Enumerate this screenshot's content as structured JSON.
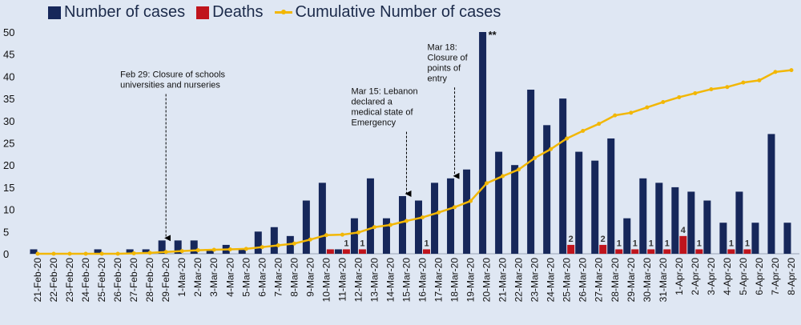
{
  "chart_data": {
    "type": "bar",
    "ylim": [
      0,
      50
    ],
    "yticks": [
      0,
      5,
      10,
      15,
      20,
      25,
      30,
      35,
      40,
      45,
      50
    ],
    "categories": [
      "21-Feb-20",
      "22-Feb-20",
      "23-Feb-20",
      "24-Feb-20",
      "25-Feb-20",
      "26-Feb-20",
      "27-Feb-20",
      "28-Feb-20",
      "29-Feb-20",
      "1-Mar-20",
      "2-Mar-20",
      "3-Mar-20",
      "4-Mar-20",
      "5-Mar-20",
      "6-Mar-20",
      "7-Mar-20",
      "8-Mar-20",
      "9-Mar-20",
      "10-Mar-20",
      "11-Mar-20",
      "12-Mar-20",
      "13-Mar-20",
      "14-Mar-20",
      "15-Mar-20",
      "16-Mar-20",
      "17-Mar-20",
      "18-Mar-20",
      "19-Mar-20",
      "20-Mar-20",
      "21-Mar-20",
      "22-Mar-20",
      "23-Mar-20",
      "24-Mar-20",
      "25-Mar-20",
      "26-Mar-20",
      "27-Mar-20",
      "28-Mar-20",
      "29-Mar-20",
      "30-Mar-20",
      "31-Mar-20",
      "1-Apr-20",
      "2-Apr-20",
      "3-Apr-20",
      "4-Apr-20",
      "5-Apr-20",
      "6-Apr-20",
      "7-Apr-20",
      "8-Apr-20"
    ],
    "series": [
      {
        "name": "Number of cases",
        "type": "bar",
        "color": "#16275a",
        "values": [
          1,
          0,
          0,
          0,
          1,
          0,
          1,
          1,
          3,
          3,
          3,
          1,
          2,
          1,
          5,
          6,
          4,
          12,
          16,
          1,
          8,
          17,
          8,
          13,
          12,
          16,
          17,
          19,
          50,
          23,
          20,
          37,
          29,
          35,
          23,
          21,
          26,
          8,
          17,
          16,
          15,
          14,
          12,
          7,
          14,
          7,
          27,
          7
        ]
      },
      {
        "name": "Deaths",
        "type": "bar",
        "color": "#c0141c",
        "values": [
          0,
          0,
          0,
          0,
          0,
          0,
          0,
          0,
          0,
          0,
          0,
          0,
          0,
          0,
          0,
          0,
          0,
          0,
          1,
          1,
          1,
          0,
          0,
          0,
          1,
          0,
          0,
          0,
          0,
          0,
          0,
          0,
          0,
          2,
          0,
          2,
          1,
          1,
          1,
          1,
          4,
          1,
          0,
          1,
          1,
          0,
          0,
          0
        ]
      },
      {
        "name": "Cumulative Number of cases",
        "type": "line",
        "color": "#f2b705",
        "values": [
          0,
          0,
          0,
          0,
          0,
          0,
          0.1,
          0.2,
          0.4,
          0.6,
          0.8,
          0.9,
          1.0,
          1.1,
          1.5,
          1.9,
          2.3,
          3.2,
          4.2,
          4.3,
          4.8,
          6.0,
          6.5,
          7.4,
          8.2,
          9.3,
          10.5,
          11.9,
          15.9,
          17.5,
          19.0,
          21.6,
          23.6,
          26.0,
          27.7,
          29.3,
          31.2,
          31.8,
          33.0,
          34.2,
          35.3,
          36.2,
          37.1,
          37.6,
          38.6,
          39.1,
          41.0,
          41.4
        ]
      }
    ],
    "death_labels": [
      {
        "index": 19,
        "text": "1"
      },
      {
        "index": 20,
        "text": "1"
      },
      {
        "index": 24,
        "text": "1"
      },
      {
        "index": 33,
        "text": "2"
      },
      {
        "index": 35,
        "text": "2"
      },
      {
        "index": 36,
        "text": "1"
      },
      {
        "index": 37,
        "text": "1"
      },
      {
        "index": 38,
        "text": "1"
      },
      {
        "index": 39,
        "text": "1"
      },
      {
        "index": 40,
        "text": "4"
      },
      {
        "index": 41,
        "text": "1"
      },
      {
        "index": 43,
        "text": "1"
      },
      {
        "index": 44,
        "text": "1"
      }
    ],
    "peak_annotation": {
      "index": 28,
      "text": "**"
    },
    "annotations": [
      {
        "index": 8,
        "lines": [
          "Feb 29: Closure of schools",
          "universities and nurseries"
        ],
        "arrow_from": 36
      },
      {
        "index": 23,
        "lines": [
          "Mar 15: Lebanon",
          "declared a",
          "medical state of",
          "Emergency"
        ],
        "arrow_from": 27.5
      },
      {
        "index": 26,
        "lines": [
          "Mar 18:",
          "Closure of",
          "points of",
          "entry"
        ],
        "arrow_from": 37.5
      }
    ],
    "legend_position": "top-left",
    "grid": false
  }
}
